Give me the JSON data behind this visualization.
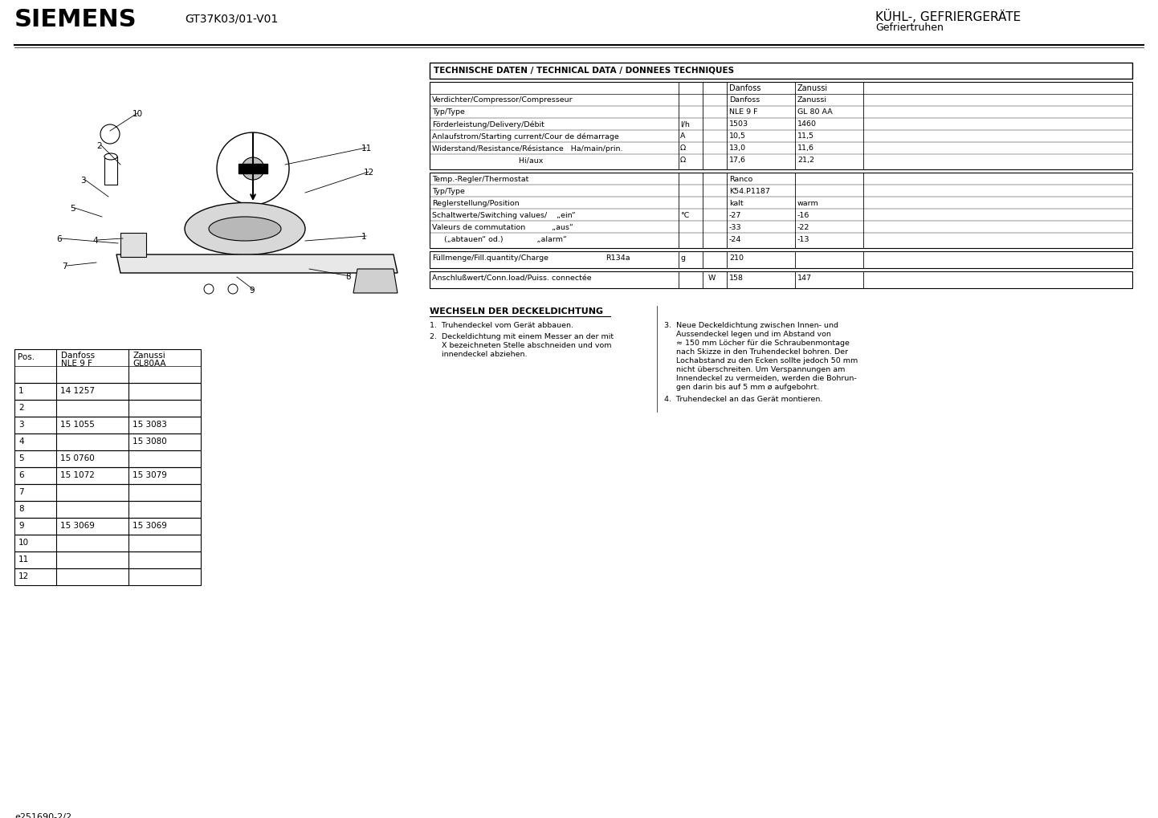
{
  "title_left": "SIEMENS",
  "title_center": "GT37K03/01-V01",
  "title_right1": "KÜHL-, GEFRIERGERÄTE",
  "title_right2": "Gefriertruhen",
  "footer_left": "e251690-2/2",
  "bg_color": "#ffffff",
  "tech_table_header": "TECHNISCHE DATEN / TECHNICAL DATA / DONNEES TECHNIQUES",
  "s1_texts": [
    [
      "Verdichter/Compressor/Compresseur",
      "",
      "",
      "Danfoss",
      "Zanussi",
      ""
    ],
    [
      "Typ/Type",
      "",
      "",
      "NLE 9 F",
      "GL 80 AA",
      ""
    ],
    [
      "Förderleistung/Delivery/Débit",
      "l/h",
      "",
      "1503",
      "1460",
      ""
    ],
    [
      "Anlaufstrom/Starting current/Cour de démarrage",
      "A",
      "",
      "10,5",
      "11,5",
      ""
    ],
    [
      "Widerstand/Resistance/Résistance   Ha/main/prin.",
      "Ω",
      "",
      "13,0",
      "11,6",
      ""
    ],
    [
      "                                    Hi/aux",
      "Ω",
      "",
      "17,6",
      "21,2",
      ""
    ]
  ],
  "s2_texts": [
    [
      "Temp.-Regler/Thermostat",
      "",
      "",
      "Ranco",
      "",
      ""
    ],
    [
      "Typ/Type",
      "",
      "",
      "K54.P1187",
      "",
      ""
    ],
    [
      "Reglerstellung/Position",
      "",
      "",
      "kalt",
      "warm",
      ""
    ],
    [
      "Schaltwerte/Switching values/    „ein“",
      "°C",
      "",
      "-27",
      "-16",
      ""
    ],
    [
      "Valeurs de commutation           „aus“",
      "",
      "",
      "-33",
      "-22",
      ""
    ],
    [
      "     („abtauen“ od.)              „alarm“",
      "",
      "",
      "-24",
      "-13",
      ""
    ]
  ],
  "parts_rows": [
    [
      "1",
      "14 1257",
      ""
    ],
    [
      "2",
      "",
      ""
    ],
    [
      "3",
      "15 1055",
      "15 3083"
    ],
    [
      "4",
      "",
      "15 3080"
    ],
    [
      "5",
      "15 0760",
      ""
    ],
    [
      "6",
      "15 1072",
      "15 3079"
    ],
    [
      "7",
      "",
      ""
    ],
    [
      "8",
      "",
      ""
    ],
    [
      "9",
      "15 3069",
      "15 3069"
    ],
    [
      "10",
      "",
      ""
    ],
    [
      "11",
      "",
      ""
    ],
    [
      "12",
      "",
      ""
    ]
  ],
  "instructions_title": "WECHSELN DER DECKELDICHTUNG",
  "instr1": "1.  Truhendeckel vom Gerät abbauen.",
  "instr2a": "2.  Deckeldichtung mit einem Messer an der mit",
  "instr2b": "     X bezeichneten Stelle abschneiden und vom",
  "instr2c": "     innendeckel abziehen.",
  "instr3a": "3.  Neue Deckeldichtung zwischen Innen- und",
  "instr3b": "     Aussendeckel legen und im Abstand von",
  "instr3c": "     ≈ 150 mm Löcher für die Schraubenmontage",
  "instr3d": "     nach Skizze in den Truhendeckel bohren. Der",
  "instr3e": "     Lochabstand zu den Ecken sollte jedoch 50 mm",
  "instr3f": "     nicht überschreiten. Um Verspannungen am",
  "instr3g": "     Innendeckel zu vermeiden, werden die Bohrun-",
  "instr3h": "     gen darin bis auf 5 mm ø aufgebohrt.",
  "instr4": "4.  Truhendeckel an das Gerät montieren."
}
